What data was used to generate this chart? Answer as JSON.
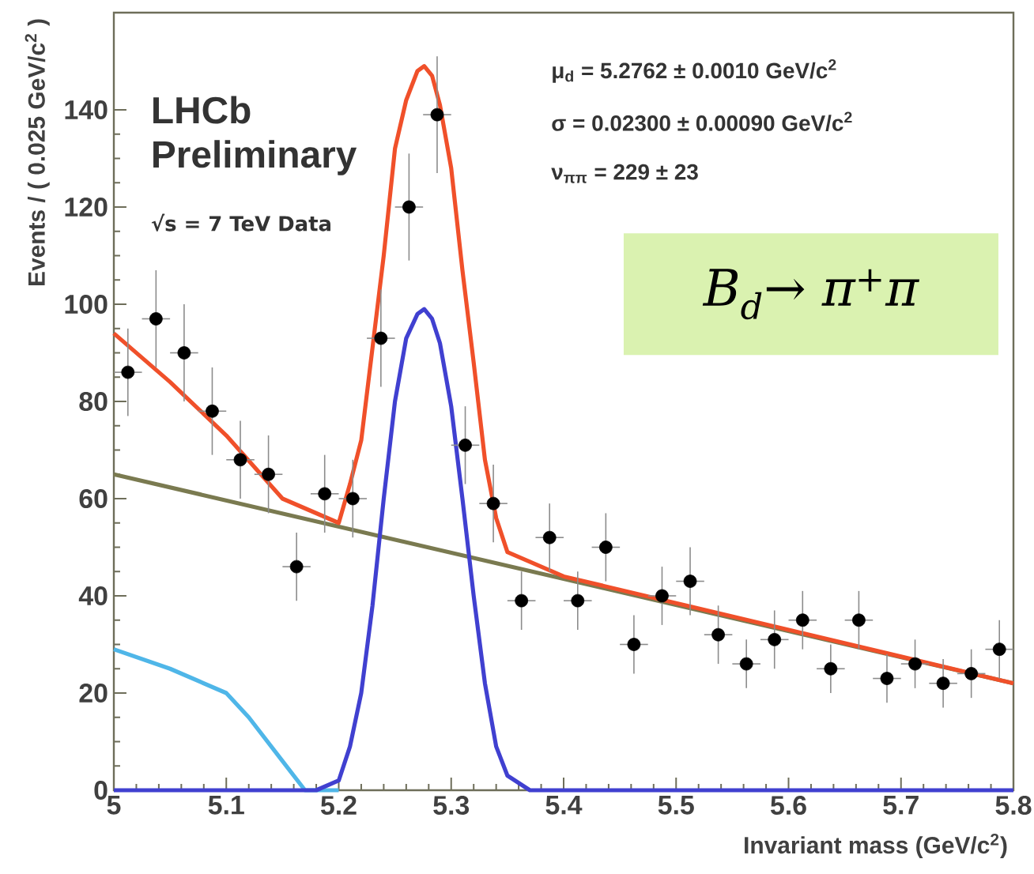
{
  "chart_data": {
    "type": "line",
    "xlabel": "Invariant mass (GeV/c$^{2}$)",
    "ylabel": "Events / ( 0.025 GeV/c$^{2}$ )",
    "xlim": [
      5,
      5.8
    ],
    "ylim": [
      0,
      160
    ],
    "xticks": [
      5,
      5.1,
      5.2,
      5.3,
      5.4,
      5.5,
      5.6,
      5.7,
      5.8
    ],
    "yticks": [
      0,
      20,
      40,
      60,
      80,
      100,
      120,
      140
    ],
    "line_style": "solid",
    "annotations": [
      "LHCb Preliminary",
      "√s = 7 TeV Data",
      "μ$_{d}$ = 5.2762 ± 0.0010 GeV/c$^{2}$",
      "σ = 0.02300 ± 0.00090 GeV/c$^{2}$",
      "ν$_{ππ}$ = 229 ± 23",
      "B$_{d}$→ π$^{+}$π"
    ],
    "series": [
      {
        "marker": "none",
        "color": "#7a7a50",
        "x": [
          5,
          5.8
        ],
        "values": [
          65,
          22
        ]
      },
      {
        "marker": "none",
        "color": "#4fb6e8",
        "x": [
          5,
          5.05,
          5.1,
          5.12,
          5.15,
          5.17,
          5.2
        ],
        "values": [
          29,
          25,
          20,
          15,
          6,
          0,
          0
        ]
      },
      {
        "marker": "none",
        "color": "#4040d0",
        "x": [
          5,
          5.18,
          5.2,
          5.21,
          5.22,
          5.23,
          5.24,
          5.25,
          5.26,
          5.27,
          5.276,
          5.283,
          5.29,
          5.3,
          5.31,
          5.32,
          5.33,
          5.34,
          5.35,
          5.37,
          5.8
        ],
        "values": [
          0,
          0,
          2,
          9,
          20,
          38,
          60,
          80,
          93,
          98,
          99,
          97,
          92,
          79,
          60,
          40,
          22,
          9,
          3,
          0,
          0
        ]
      },
      {
        "marker": "none",
        "color": "#f0502a",
        "x": [
          5,
          5.05,
          5.1,
          5.15,
          5.2,
          5.21,
          5.22,
          5.23,
          5.24,
          5.25,
          5.26,
          5.27,
          5.276,
          5.283,
          5.29,
          5.3,
          5.31,
          5.32,
          5.33,
          5.34,
          5.35,
          5.4,
          5.5,
          5.6,
          5.7,
          5.8
        ],
        "values": [
          94,
          84,
          73,
          60,
          55,
          63,
          72,
          91,
          110,
          132,
          142,
          148,
          149,
          147,
          141,
          128,
          107,
          88,
          68,
          56,
          49,
          44,
          38.5,
          33,
          27.5,
          22
        ]
      },
      {
        "type": "scatter",
        "marker": "circle",
        "color": "#000000",
        "x": [
          5.0125,
          5.0375,
          5.0625,
          5.0875,
          5.1125,
          5.1375,
          5.1625,
          5.1875,
          5.2125,
          5.2375,
          5.2625,
          5.2875,
          5.3125,
          5.3375,
          5.3625,
          5.3875,
          5.4125,
          5.4375,
          5.4625,
          5.4875,
          5.5125,
          5.5375,
          5.5625,
          5.5875,
          5.6125,
          5.6375,
          5.6625,
          5.6875,
          5.7125,
          5.7375,
          5.7625,
          5.7875
        ],
        "values": [
          86,
          97,
          90,
          78,
          68,
          65,
          46,
          61,
          60,
          93,
          120,
          139,
          71,
          59,
          39,
          52,
          39,
          50,
          30,
          40,
          43,
          32,
          26,
          31,
          35,
          25,
          35,
          23,
          26,
          22,
          24,
          29
        ],
        "errors": [
          9,
          10,
          10,
          9,
          8,
          8,
          7,
          8,
          8,
          10,
          11,
          12,
          8,
          8,
          6,
          7,
          6,
          7,
          6,
          6,
          7,
          6,
          5,
          6,
          6,
          5,
          6,
          5,
          5,
          5,
          5,
          6
        ],
        "xerrors": [
          0.0125,
          0.0125,
          0.0125,
          0.0125,
          0.0125,
          0.0125,
          0.0125,
          0.0125,
          0.0125,
          0.0125,
          0.0125,
          0.0125,
          0.0125,
          0.0125,
          0.0125,
          0.0125,
          0.0125,
          0.0125,
          0.0125,
          0.0125,
          0.0125,
          0.0125,
          0.0125,
          0.0125,
          0.0125,
          0.0125,
          0.0125,
          0.0125,
          0.0125,
          0.0125,
          0.0125,
          0.0125
        ]
      }
    ]
  }
}
